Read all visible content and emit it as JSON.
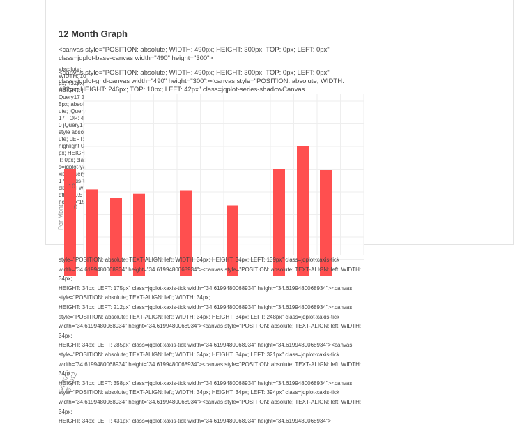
{
  "panel": {
    "title": "12 Month Graph"
  },
  "raw_lines": [
    "<canvas style=\"POSITION: absolute; WIDTH: 490px; HEIGHT: 300px; TOP: 0px; LEFT: 0px\"",
    "class=jqplot-base-canvas width=\"490\" height=\"300\">",
    "<canvas style=\"POSITION: absolute; WIDTH: 490px; HEIGHT: 300px; TOP: 0px; LEFT: 0px\"",
    "class=jqplot-grid-canvas width=\"490\" height=\"300\"><canvas style=\"POSITION: absolute; WIDTH:",
    "432px; HEIGHT: 246px; TOP: 10px; LEFT: 42px\" class=jqplot-series-shadowCanvas"
  ],
  "left_fragments": "absolute; WIDTH: 10px; 432px; HEIGHT: jQuery17 15px; absolute; jQuery17 TOP: 40 jQuery17 style absolute; LEFT: highlight 0px; HEIGHT: 0px; class=jqplot-yaxis- jQuery17 -yaxis-tick label width=\"10.5 height=\"15",
  "xaxis_tick_lines": [
    "style=\"POSITION: absolute; TEXT-ALIGN: left; WIDTH: 34px; HEIGHT: 34px; LEFT: 139px\" class=jqplot-xaxis-tick width=\"34.6199480068934\" height=\"34.6199480068934\"><canvas style=\"POSITION: absolute; TEXT-ALIGN: left; WIDTH: 34px;",
    "HEIGHT: 34px; LEFT: 175px\" class=jqplot-xaxis-tick width=\"34.6199480068934\" height=\"34.6199480068934\"><canvas style=\"POSITION: absolute; TEXT-ALIGN: left; WIDTH: 34px;",
    "HEIGHT: 34px; LEFT: 212px\" class=jqplot-xaxis-tick width=\"34.6199480068934\" height=\"34.6199480068934\"><canvas",
    "style=\"POSITION: absolute; TEXT-ALIGN: left; WIDTH: 34px; HEIGHT: 34px; LEFT: 248px\" class=jqplot-xaxis-tick",
    "width=\"34.6199480068934\" height=\"34.6199480068934\"><canvas style=\"POSITION: absolute; TEXT-ALIGN: left; WIDTH: 34px;",
    "HEIGHT: 34px; LEFT: 285px\" class=jqplot-xaxis-tick width=\"34.6199480068934\" height=\"34.6199480068934\"><canvas",
    "style=\"POSITION: absolute; TEXT-ALIGN: left; WIDTH: 34px; HEIGHT: 34px; LEFT: 321px\" class=jqplot-xaxis-tick",
    "width=\"34.6199480068934\" height=\"34.6199480068934\"><canvas style=\"POSITION: absolute; TEXT-ALIGN: left; WIDTH: 34px;",
    "HEIGHT: 34px; LEFT: 358px\" class=jqplot-xaxis-tick width=\"34.6199480068934\" height=\"34.6199480068934\"><canvas",
    "style=\"POSITION: absolute; TEXT-ALIGN: left; WIDTH: 34px; HEIGHT: 34px; LEFT: 394px\" class=jqplot-xaxis-tick",
    "width=\"34.6199480068934\" height=\"34.6199480068934\"><canvas style=\"POSITION: absolute; TEXT-ALIGN: left; WIDTH: 34px;",
    "HEIGHT: 34px; LEFT: 431px\" class=jqplot-xaxis-tick width=\"34.6199480068934\" height=\"34.6199480068934\">"
  ],
  "rotated_dates": [
    "04-2012",
    "05-2012"
  ],
  "y_axis_label": "Per Month",
  "chart_data": {
    "type": "bar",
    "categories": [
      "",
      "",
      "",
      "",
      "",
      "",
      "",
      "",
      "",
      "",
      "",
      ""
    ],
    "values": [
      6,
      3.2,
      2,
      2.6,
      0,
      3,
      0,
      1,
      6,
      9.1,
      5.9,
      0
    ],
    "ylim": [
      0,
      10
    ],
    "yticks": [
      "0",
      "10"
    ],
    "grid": true,
    "bar_color": "#ff4f4f"
  }
}
